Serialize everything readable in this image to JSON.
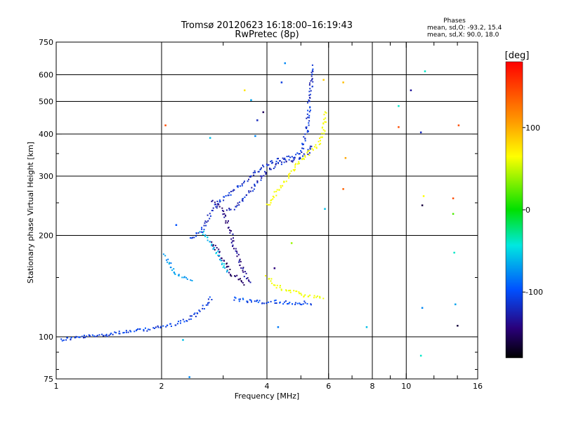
{
  "chart_data": {
    "type": "scatter",
    "title": "Tromsø 20120623 16:18:00–16:19:43",
    "subtitle": "RwPretec (8p)",
    "xlabel": "Frequency [MHz]",
    "ylabel": "Stationary phase Virtual Height [km]",
    "xscale": "log",
    "yscale": "log",
    "xlim": [
      1,
      16
    ],
    "ylim": [
      75,
      750
    ],
    "x_ticks": [
      1,
      2,
      4,
      6,
      8,
      10,
      16
    ],
    "x_minor_ticks": [
      3,
      5,
      7,
      9,
      12,
      14
    ],
    "y_ticks": [
      75,
      100,
      200,
      300,
      400,
      500,
      600,
      750
    ],
    "grid": true,
    "vgrid": [
      2,
      4,
      6,
      8,
      10
    ],
    "hgrid": [
      100,
      200,
      300,
      400,
      500,
      600
    ],
    "stats": {
      "header": "Phases",
      "o_line": "mean, sd,O: -93.2, 15.4",
      "x_line": "mean, sd,X:  90.0, 18.0"
    },
    "colorbar": {
      "label": "[deg]",
      "min": -180,
      "max": 180,
      "ticks": [
        100,
        0,
        -100
      ]
    },
    "traces": [
      {
        "type": "curve",
        "phase": -110,
        "points": [
          [
            1.03,
            98
          ],
          [
            1.1,
            99
          ],
          [
            1.2,
            100
          ],
          [
            1.35,
            101
          ],
          [
            1.5,
            103
          ],
          [
            1.7,
            104
          ],
          [
            1.9,
            106
          ],
          [
            2.1,
            108
          ],
          [
            2.3,
            111
          ],
          [
            2.5,
            116
          ],
          [
            2.6,
            121
          ],
          [
            2.7,
            126
          ],
          [
            2.8,
            131
          ]
        ]
      },
      {
        "type": "curve",
        "phase": -115,
        "points": [
          [
            2.4,
            197
          ],
          [
            2.5,
            199
          ],
          [
            2.65,
            210
          ],
          [
            2.75,
            230
          ],
          [
            2.9,
            250
          ],
          [
            3.1,
            265
          ],
          [
            3.3,
            278
          ],
          [
            3.5,
            292
          ],
          [
            3.7,
            306
          ],
          [
            3.9,
            320
          ],
          [
            4.1,
            330
          ],
          [
            4.3,
            335
          ],
          [
            4.5,
            338
          ],
          [
            4.8,
            345
          ],
          [
            5.0,
            355
          ],
          [
            5.1,
            380
          ],
          [
            5.2,
            410
          ],
          [
            5.25,
            450
          ],
          [
            5.3,
            500
          ],
          [
            5.35,
            560
          ],
          [
            5.4,
            640
          ]
        ]
      },
      {
        "type": "curve",
        "phase": -120,
        "points": [
          [
            3.1,
            235
          ],
          [
            3.3,
            245
          ],
          [
            3.5,
            262
          ],
          [
            3.7,
            282
          ],
          [
            3.9,
            300
          ],
          [
            4.1,
            318
          ],
          [
            4.3,
            327
          ],
          [
            4.6,
            333
          ],
          [
            4.9,
            337
          ],
          [
            5.2,
            348
          ],
          [
            5.4,
            375
          ]
        ]
      },
      {
        "type": "curve",
        "phase": -135,
        "points": [
          [
            2.8,
            255
          ],
          [
            2.95,
            240
          ],
          [
            3.05,
            225
          ],
          [
            3.15,
            205
          ],
          [
            3.2,
            190
          ],
          [
            3.3,
            175
          ],
          [
            3.4,
            160
          ],
          [
            3.5,
            150
          ],
          [
            3.6,
            143
          ]
        ]
      },
      {
        "type": "curve",
        "phase": -145,
        "points": [
          [
            2.8,
            190
          ],
          [
            2.9,
            178
          ],
          [
            3.0,
            168
          ],
          [
            3.1,
            160
          ],
          [
            3.2,
            152
          ],
          [
            3.35,
            147
          ],
          [
            3.5,
            143
          ]
        ]
      },
      {
        "type": "curve",
        "phase": -105,
        "points": [
          [
            3.2,
            130
          ],
          [
            3.5,
            128
          ],
          [
            3.8,
            127
          ],
          [
            4.2,
            127
          ],
          [
            4.6,
            126
          ],
          [
            5.0,
            126
          ],
          [
            5.4,
            126
          ]
        ]
      },
      {
        "type": "curve",
        "phase": 95,
        "points": [
          [
            4.0,
            245
          ],
          [
            4.2,
            262
          ],
          [
            4.4,
            280
          ],
          [
            4.6,
            298
          ],
          [
            4.8,
            315
          ],
          [
            5.0,
            335
          ],
          [
            5.2,
            348
          ],
          [
            5.4,
            360
          ],
          [
            5.6,
            372
          ],
          [
            5.75,
            400
          ],
          [
            5.85,
            430
          ],
          [
            5.9,
            470
          ]
        ]
      },
      {
        "type": "curve",
        "phase": 90,
        "points": [
          [
            4.0,
            150
          ],
          [
            4.2,
            143
          ],
          [
            4.4,
            139
          ],
          [
            4.7,
            136
          ],
          [
            5.0,
            134
          ],
          [
            5.3,
            132
          ],
          [
            5.6,
            131
          ],
          [
            5.85,
            130
          ]
        ]
      },
      {
        "type": "curve",
        "phase": -75,
        "points": [
          [
            2.05,
            175
          ],
          [
            2.1,
            165
          ],
          [
            2.15,
            158
          ],
          [
            2.2,
            153
          ],
          [
            2.3,
            150
          ],
          [
            2.45,
            148
          ]
        ]
      },
      {
        "type": "curve",
        "phase": -60,
        "points": [
          [
            2.6,
            205
          ],
          [
            2.7,
            195
          ],
          [
            2.8,
            185
          ],
          [
            2.9,
            175
          ],
          [
            3.0,
            165
          ],
          [
            3.1,
            155
          ]
        ]
      }
    ],
    "points": [
      {
        "x": 2.05,
        "y": 425,
        "phase": 160
      },
      {
        "x": 2.75,
        "y": 390,
        "phase": -60
      },
      {
        "x": 3.45,
        "y": 540,
        "phase": 110
      },
      {
        "x": 3.6,
        "y": 505,
        "phase": -70
      },
      {
        "x": 3.75,
        "y": 440,
        "phase": -120
      },
      {
        "x": 3.7,
        "y": 395,
        "phase": -80
      },
      {
        "x": 3.9,
        "y": 465,
        "phase": -150
      },
      {
        "x": 4.4,
        "y": 570,
        "phase": -110
      },
      {
        "x": 4.5,
        "y": 650,
        "phase": -80
      },
      {
        "x": 5.8,
        "y": 580,
        "phase": 120
      },
      {
        "x": 6.6,
        "y": 570,
        "phase": 125
      },
      {
        "x": 6.7,
        "y": 340,
        "phase": 135
      },
      {
        "x": 6.6,
        "y": 275,
        "phase": 155
      },
      {
        "x": 5.85,
        "y": 240,
        "phase": -60
      },
      {
        "x": 4.7,
        "y": 190,
        "phase": 40
      },
      {
        "x": 4.2,
        "y": 160,
        "phase": -140
      },
      {
        "x": 4.3,
        "y": 107,
        "phase": -85
      },
      {
        "x": 7.7,
        "y": 107,
        "phase": -60
      },
      {
        "x": 9.5,
        "y": 485,
        "phase": -40
      },
      {
        "x": 9.5,
        "y": 420,
        "phase": 160
      },
      {
        "x": 10.3,
        "y": 540,
        "phase": -130
      },
      {
        "x": 11.3,
        "y": 615,
        "phase": -40
      },
      {
        "x": 11.0,
        "y": 405,
        "phase": -120
      },
      {
        "x": 11.2,
        "y": 262,
        "phase": 100
      },
      {
        "x": 11.1,
        "y": 246,
        "phase": -160
      },
      {
        "x": 11.1,
        "y": 122,
        "phase": -80
      },
      {
        "x": 11.0,
        "y": 88,
        "phase": -40
      },
      {
        "x": 13.6,
        "y": 258,
        "phase": 160
      },
      {
        "x": 13.6,
        "y": 232,
        "phase": 20
      },
      {
        "x": 13.7,
        "y": 178,
        "phase": -40
      },
      {
        "x": 13.8,
        "y": 125,
        "phase": -70
      },
      {
        "x": 14.1,
        "y": 425,
        "phase": 160
      },
      {
        "x": 14.0,
        "y": 108,
        "phase": -160
      },
      {
        "x": 2.2,
        "y": 215,
        "phase": -100
      },
      {
        "x": 2.3,
        "y": 98,
        "phase": -60
      },
      {
        "x": 2.4,
        "y": 76,
        "phase": -80
      }
    ]
  }
}
